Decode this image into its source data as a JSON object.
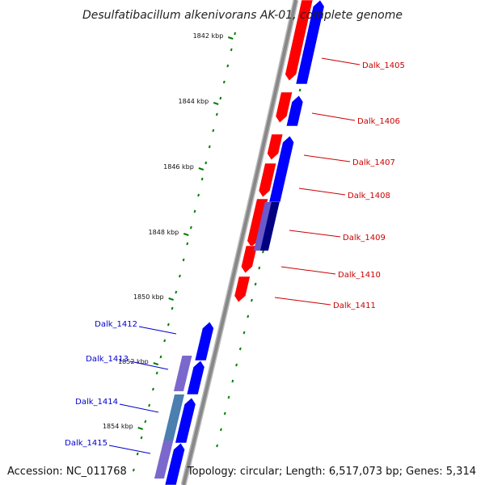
{
  "title": "Desulfatibacillum alkenivorans AK-01, complete genome",
  "footer": {
    "accession": "Accession: NC_011768",
    "summary": "Topology: circular; Length: 6,517,073 bp; Genes: 5,314"
  },
  "colors": {
    "forward": "#ff0000",
    "reverse": "#0000ff",
    "forward_label": "#cc0000",
    "reverse_label": "#0000cc",
    "backbone": "#888888",
    "tick": "#008000"
  },
  "scale": [
    {
      "label": "1842 kbp"
    },
    {
      "label": "1844 kbp"
    },
    {
      "label": "1846 kbp"
    },
    {
      "label": "1848 kbp"
    },
    {
      "label": "1850 kbp"
    },
    {
      "label": "1852 kbp"
    },
    {
      "label": "1854 kbp"
    }
  ],
  "genes_right": [
    {
      "name": "Dalk_1405"
    },
    {
      "name": "Dalk_1406"
    },
    {
      "name": "Dalk_1407"
    },
    {
      "name": "Dalk_1408"
    },
    {
      "name": "Dalk_1409"
    },
    {
      "name": "Dalk_1410"
    },
    {
      "name": "Dalk_1411"
    }
  ],
  "genes_left": [
    {
      "name": "Dalk_1412"
    },
    {
      "name": "Dalk_1413"
    },
    {
      "name": "Dalk_1414"
    },
    {
      "name": "Dalk_1415"
    }
  ]
}
